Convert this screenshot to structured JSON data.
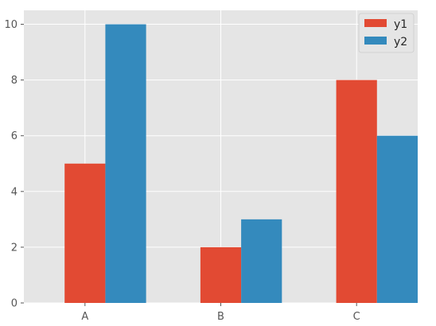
{
  "chart_data": {
    "type": "bar",
    "style": "ggplot",
    "categories": [
      "A",
      "B",
      "C"
    ],
    "series": [
      {
        "name": "y1",
        "color": "#E24A33",
        "values": [
          5,
          2,
          8
        ]
      },
      {
        "name": "y2",
        "color": "#348ABD",
        "values": [
          10,
          3,
          6
        ]
      }
    ],
    "title": "",
    "xlabel": "",
    "ylabel": "",
    "ylim": [
      0,
      10.5
    ],
    "yticks": [
      0,
      2,
      4,
      6,
      8,
      10
    ],
    "grid": true,
    "legend_position": "top-right",
    "background_color": "#E5E5E5",
    "grid_color": "#FFFFFF"
  }
}
